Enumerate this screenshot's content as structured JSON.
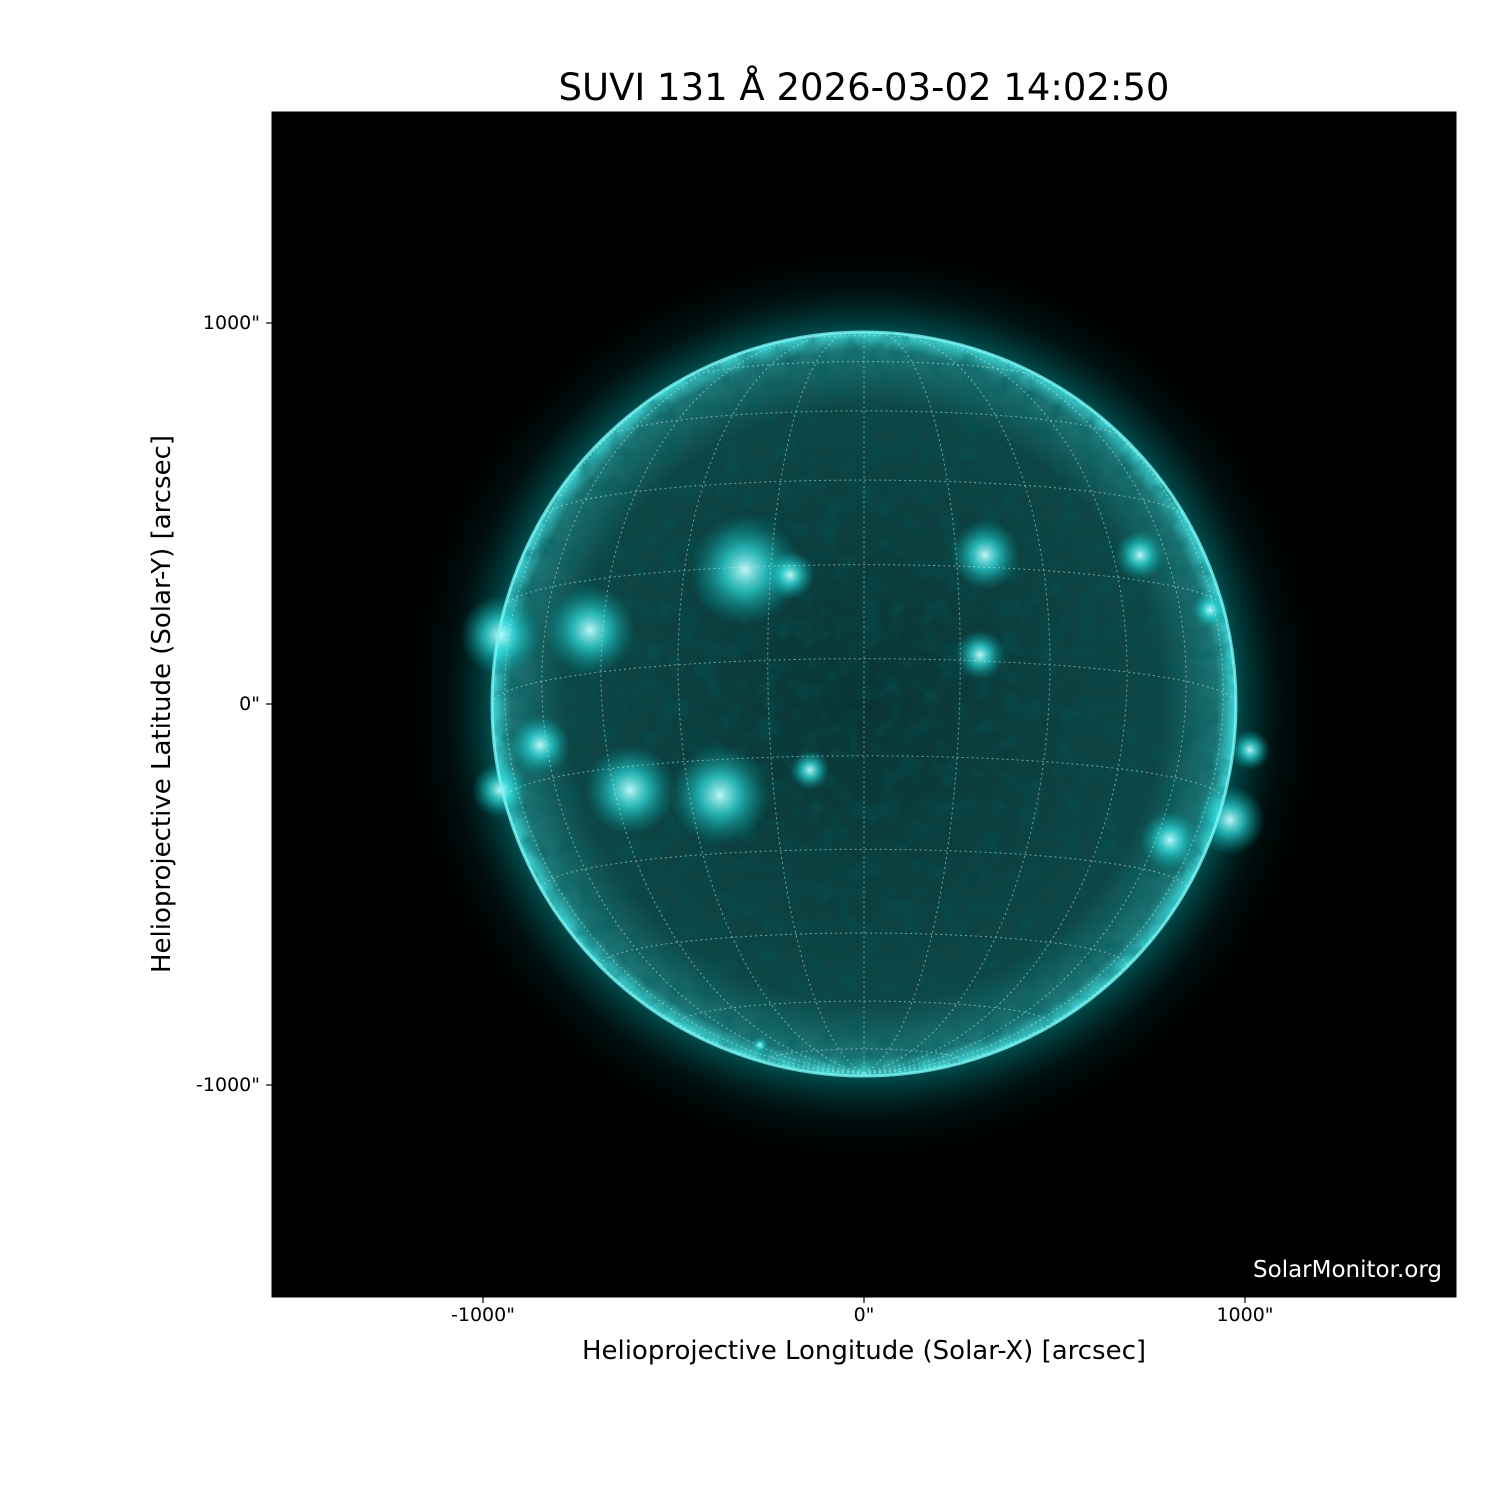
{
  "title": "SUVI 131 Å 2026-03-02 14:02:50",
  "instrument": "SUVI",
  "wavelength": "131 Å",
  "observation_time": "2026-03-02 14:02:50",
  "colors": {
    "sun": "#00e5e5",
    "background": "#000000"
  },
  "axes": {
    "xlabel": "Helioprojective Longitude (Solar-X) [arcsec]",
    "ylabel": "Helioprojective Latitude (Solar-Y) [arcsec]",
    "xticks": [
      "-1000\"",
      "0\"",
      "1000\""
    ],
    "yticks": [
      "1000\"",
      "0\"",
      "-1000\""
    ]
  },
  "watermark": "SolarMonitor.org"
}
